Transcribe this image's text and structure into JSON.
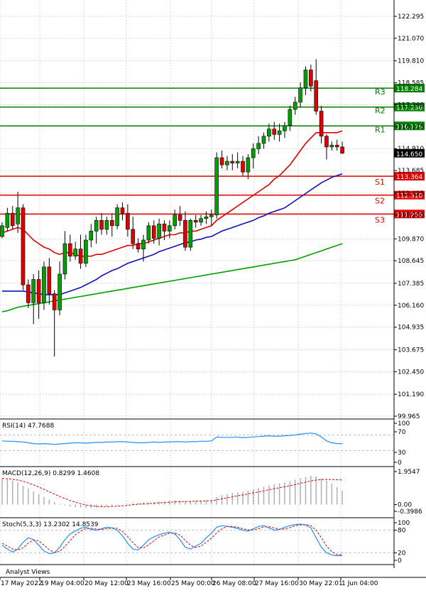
{
  "chart_data": [
    {
      "type": "candlestick",
      "panel": "price",
      "y_ticks": [
        "122.295",
        "121.070",
        "119.810",
        "118.585",
        "117.360",
        "116.135",
        "114.910",
        "113.685",
        "112.425",
        "111.200",
        "109.870",
        "108.645",
        "107.385",
        "106.160",
        "104.935",
        "103.675",
        "102.450",
        "101.190",
        "99.965"
      ],
      "ylim": [
        99.965,
        122.295
      ],
      "x_tick_labels": [
        "17 May 2022",
        "19 May 04:00",
        "20 May 12:00",
        "23 May 16:00",
        "25 May 00:00",
        "26 May 08:00",
        "27 May 16:00",
        "30 May 22:01",
        "1 Jun 04:00"
      ],
      "candles": [
        {
          "o": 110.0,
          "h": 110.8,
          "l": 109.9,
          "c": 110.6
        },
        {
          "o": 110.5,
          "h": 111.6,
          "l": 110.3,
          "c": 111.3
        },
        {
          "o": 111.3,
          "h": 111.7,
          "l": 110.4,
          "c": 110.6
        },
        {
          "o": 110.7,
          "h": 112.5,
          "l": 110.2,
          "c": 111.6
        },
        {
          "o": 111.6,
          "h": 111.8,
          "l": 107.0,
          "c": 107.3
        },
        {
          "o": 107.3,
          "h": 107.6,
          "l": 106.0,
          "c": 106.3
        },
        {
          "o": 106.3,
          "h": 107.9,
          "l": 105.1,
          "c": 107.6
        },
        {
          "o": 107.6,
          "h": 108.1,
          "l": 105.4,
          "c": 106.3
        },
        {
          "o": 106.3,
          "h": 108.6,
          "l": 105.9,
          "c": 108.3
        },
        {
          "o": 108.3,
          "h": 108.8,
          "l": 106.2,
          "c": 106.8
        },
        {
          "o": 106.8,
          "h": 107.0,
          "l": 103.3,
          "c": 105.9
        },
        {
          "o": 105.9,
          "h": 108.6,
          "l": 105.6,
          "c": 107.9
        },
        {
          "o": 107.9,
          "h": 110.3,
          "l": 107.6,
          "c": 109.6
        },
        {
          "o": 109.6,
          "h": 110.1,
          "l": 108.6,
          "c": 108.9
        },
        {
          "o": 108.9,
          "h": 109.7,
          "l": 108.7,
          "c": 109.3
        },
        {
          "o": 109.3,
          "h": 110.1,
          "l": 108.2,
          "c": 108.5
        },
        {
          "o": 108.5,
          "h": 110.1,
          "l": 108.3,
          "c": 109.8
        },
        {
          "o": 109.8,
          "h": 110.7,
          "l": 109.4,
          "c": 110.3
        },
        {
          "o": 110.3,
          "h": 111.1,
          "l": 109.6,
          "c": 110.9
        },
        {
          "o": 110.9,
          "h": 111.3,
          "l": 110.1,
          "c": 110.4
        },
        {
          "o": 110.4,
          "h": 111.1,
          "l": 110.1,
          "c": 110.9
        },
        {
          "o": 110.9,
          "h": 111.3,
          "l": 110.0,
          "c": 110.6
        },
        {
          "o": 110.6,
          "h": 111.8,
          "l": 110.4,
          "c": 111.6
        },
        {
          "o": 111.6,
          "h": 111.9,
          "l": 110.9,
          "c": 111.3
        },
        {
          "o": 111.3,
          "h": 111.8,
          "l": 110.0,
          "c": 110.4
        },
        {
          "o": 110.4,
          "h": 111.1,
          "l": 109.3,
          "c": 109.6
        },
        {
          "o": 109.6,
          "h": 109.9,
          "l": 109.1,
          "c": 109.3
        },
        {
          "o": 109.3,
          "h": 110.1,
          "l": 108.6,
          "c": 109.8
        },
        {
          "o": 109.8,
          "h": 110.8,
          "l": 109.6,
          "c": 110.6
        },
        {
          "o": 110.6,
          "h": 110.9,
          "l": 109.6,
          "c": 109.9
        },
        {
          "o": 109.9,
          "h": 111.0,
          "l": 109.5,
          "c": 110.7
        },
        {
          "o": 110.7,
          "h": 110.9,
          "l": 109.8,
          "c": 110.3
        },
        {
          "o": 110.3,
          "h": 110.9,
          "l": 109.9,
          "c": 110.6
        },
        {
          "o": 110.6,
          "h": 111.5,
          "l": 110.4,
          "c": 111.2
        },
        {
          "o": 111.2,
          "h": 111.7,
          "l": 110.6,
          "c": 110.9
        },
        {
          "o": 110.9,
          "h": 111.4,
          "l": 109.2,
          "c": 109.4
        },
        {
          "o": 109.4,
          "h": 111.0,
          "l": 109.2,
          "c": 110.9
        },
        {
          "o": 110.9,
          "h": 111.2,
          "l": 110.5,
          "c": 110.8
        },
        {
          "o": 110.8,
          "h": 111.2,
          "l": 110.6,
          "c": 111.0
        },
        {
          "o": 111.0,
          "h": 111.4,
          "l": 110.7,
          "c": 111.1
        },
        {
          "o": 111.1,
          "h": 111.5,
          "l": 110.6,
          "c": 111.2
        },
        {
          "o": 111.2,
          "h": 114.7,
          "l": 111.0,
          "c": 114.4
        },
        {
          "o": 114.4,
          "h": 114.8,
          "l": 113.8,
          "c": 114.0
        },
        {
          "o": 114.0,
          "h": 114.5,
          "l": 113.7,
          "c": 114.2
        },
        {
          "o": 114.2,
          "h": 114.6,
          "l": 113.7,
          "c": 114.1
        },
        {
          "o": 114.1,
          "h": 114.7,
          "l": 113.8,
          "c": 114.2
        },
        {
          "o": 114.2,
          "h": 114.5,
          "l": 113.4,
          "c": 113.6
        },
        {
          "o": 113.6,
          "h": 114.6,
          "l": 113.2,
          "c": 114.4
        },
        {
          "o": 114.4,
          "h": 115.2,
          "l": 113.8,
          "c": 114.9
        },
        {
          "o": 114.9,
          "h": 115.6,
          "l": 114.6,
          "c": 115.2
        },
        {
          "o": 115.2,
          "h": 115.8,
          "l": 114.9,
          "c": 115.6
        },
        {
          "o": 115.6,
          "h": 116.3,
          "l": 115.3,
          "c": 116.0
        },
        {
          "o": 116.0,
          "h": 116.4,
          "l": 115.4,
          "c": 115.7
        },
        {
          "o": 115.7,
          "h": 116.3,
          "l": 115.3,
          "c": 115.9
        },
        {
          "o": 115.9,
          "h": 116.4,
          "l": 115.5,
          "c": 116.2
        },
        {
          "o": 116.2,
          "h": 117.3,
          "l": 115.9,
          "c": 117.1
        },
        {
          "o": 117.1,
          "h": 117.8,
          "l": 116.8,
          "c": 117.5
        },
        {
          "o": 117.5,
          "h": 118.6,
          "l": 117.2,
          "c": 118.3
        },
        {
          "o": 118.3,
          "h": 119.5,
          "l": 117.9,
          "c": 119.3
        },
        {
          "o": 119.3,
          "h": 119.6,
          "l": 118.1,
          "c": 118.4
        },
        {
          "o": 118.7,
          "h": 119.9,
          "l": 116.8,
          "c": 117.0
        },
        {
          "o": 117.0,
          "h": 117.3,
          "l": 115.2,
          "c": 115.6
        },
        {
          "o": 115.6,
          "h": 115.7,
          "l": 114.3,
          "c": 115.0
        },
        {
          "o": 115.0,
          "h": 115.3,
          "l": 114.8,
          "c": 115.1
        },
        {
          "o": 115.1,
          "h": 115.4,
          "l": 114.8,
          "c": 115.0
        },
        {
          "o": 115.0,
          "h": 115.3,
          "l": 114.6,
          "c": 114.65
        }
      ],
      "moving_averages": [
        {
          "color": "#e00000",
          "values": [
            110.2,
            110.3,
            110.4,
            110.5,
            110.4,
            110.1,
            109.8,
            109.6,
            109.4,
            109.3,
            109.1,
            109.0,
            109.1,
            109.1,
            109.0,
            108.9,
            108.9,
            108.9,
            109.0,
            109.0,
            109.1,
            109.2,
            109.3,
            109.4,
            109.5,
            109.5,
            109.6,
            109.6,
            109.7,
            109.8,
            109.9,
            110.0,
            110.1,
            110.1,
            110.2,
            110.2,
            110.3,
            110.3,
            110.4,
            110.5,
            110.6,
            110.9,
            111.1,
            111.3,
            111.5,
            111.7,
            111.9,
            112.1,
            112.3,
            112.5,
            112.7,
            112.9,
            113.2,
            113.4,
            113.7,
            114.0,
            114.4,
            114.8,
            115.2,
            115.5,
            115.8,
            115.8,
            115.8,
            115.8,
            115.8,
            115.9
          ]
        },
        {
          "color": "#1010c0",
          "values": [
            106.95,
            106.95,
            106.95,
            106.95,
            106.95,
            106.9,
            106.85,
            106.8,
            106.75,
            106.75,
            106.75,
            106.75,
            106.85,
            106.95,
            107.05,
            107.15,
            107.3,
            107.45,
            107.6,
            107.8,
            107.95,
            108.1,
            108.2,
            108.35,
            108.5,
            108.6,
            108.7,
            108.8,
            108.9,
            109.0,
            109.15,
            109.25,
            109.35,
            109.45,
            109.55,
            109.65,
            109.7,
            109.8,
            109.85,
            109.95,
            110.0,
            110.15,
            110.3,
            110.4,
            110.5,
            110.6,
            110.7,
            110.8,
            110.9,
            111.05,
            111.15,
            111.3,
            111.4,
            111.5,
            111.6,
            111.8,
            112.0,
            112.2,
            112.4,
            112.6,
            112.8,
            113.0,
            113.15,
            113.3,
            113.4,
            113.5
          ]
        },
        {
          "color": "#00a000",
          "values": [
            105.8,
            105.85,
            105.95,
            106.05,
            106.1,
            106.15,
            106.2,
            106.25,
            106.3,
            106.35,
            106.4,
            106.45,
            106.5,
            106.55,
            106.6,
            106.65,
            106.7,
            106.75,
            106.8,
            106.85,
            106.9,
            106.95,
            107.0,
            107.05,
            107.1,
            107.15,
            107.2,
            107.25,
            107.3,
            107.35,
            107.4,
            107.45,
            107.5,
            107.55,
            107.6,
            107.65,
            107.7,
            107.75,
            107.8,
            107.85,
            107.9,
            107.95,
            108.0,
            108.05,
            108.1,
            108.15,
            108.2,
            108.25,
            108.3,
            108.35,
            108.4,
            108.45,
            108.5,
            108.55,
            108.6,
            108.65,
            108.7,
            108.8,
            108.9,
            109.0,
            109.1,
            109.2,
            109.3,
            109.4,
            109.5,
            109.6
          ]
        }
      ],
      "levels": [
        {
          "label": "R3",
          "value": 118.284,
          "value_label": "118.284",
          "color": "#008000"
        },
        {
          "label": "R2",
          "value": 117.23,
          "value_label": "117.230",
          "color": "#008000"
        },
        {
          "label": "R1",
          "value": 116.176,
          "value_label": "116.176",
          "color": "#008000"
        },
        {
          "label": "S1",
          "value": 113.364,
          "value_label": "113.364",
          "color": "#e00000"
        },
        {
          "label": "S2",
          "value": 112.31,
          "value_label": "112.310",
          "color": "#e00000"
        },
        {
          "label": "S3",
          "value": 111.256,
          "value_label": "111.256",
          "color": "#e00000"
        }
      ],
      "current_price": {
        "value": 114.65,
        "label": "114.650"
      },
      "watermark": "Analyst Views"
    },
    {
      "type": "line",
      "panel": "rsi",
      "title": "RSI(14) 47.7688",
      "y_ticks": [
        "100",
        "70",
        "30",
        "0"
      ],
      "ylim": [
        0,
        100
      ],
      "values": [
        55,
        54,
        54,
        53,
        52,
        50,
        48,
        47,
        48,
        47,
        46,
        47,
        48,
        49,
        50,
        50,
        49,
        50,
        51,
        51,
        52,
        52,
        53,
        53,
        52,
        51,
        50,
        50,
        51,
        52,
        51,
        52,
        52,
        53,
        53,
        52,
        53,
        53,
        54,
        54,
        55,
        65,
        64,
        64,
        64,
        65,
        63,
        64,
        65,
        66,
        67,
        68,
        67,
        67,
        68,
        69,
        70,
        72,
        74,
        75,
        73,
        65,
        55,
        50,
        48,
        48
      ]
    },
    {
      "type": "line",
      "panel": "macd",
      "title": "MACD(12,26,9) 0.8299 1.4608",
      "y_ticks": [
        "1.9547",
        "0.00",
        "-0.3986"
      ],
      "ylim": [
        -0.3986,
        1.9547
      ],
      "histogram": [
        1.55,
        1.5,
        1.42,
        1.3,
        1.12,
        0.95,
        0.78,
        0.6,
        0.45,
        0.3,
        0.15,
        0.05,
        -0.05,
        -0.1,
        -0.15,
        -0.18,
        -0.2,
        -0.2,
        -0.18,
        -0.15,
        -0.12,
        -0.08,
        -0.04,
        0.0,
        0.04,
        0.08,
        0.1,
        0.12,
        0.14,
        0.16,
        0.18,
        0.2,
        0.22,
        0.23,
        0.24,
        0.22,
        0.2,
        0.22,
        0.24,
        0.26,
        0.28,
        0.45,
        0.55,
        0.62,
        0.68,
        0.72,
        0.76,
        0.82,
        0.9,
        0.98,
        1.06,
        1.14,
        1.2,
        1.26,
        1.32,
        1.4,
        1.48,
        1.56,
        1.64,
        1.7,
        1.68,
        1.55,
        1.4,
        1.25,
        1.05,
        0.83
      ],
      "signal": [
        1.55,
        1.53,
        1.5,
        1.45,
        1.38,
        1.28,
        1.17,
        1.04,
        0.9,
        0.76,
        0.62,
        0.48,
        0.36,
        0.24,
        0.14,
        0.05,
        -0.02,
        -0.07,
        -0.1,
        -0.12,
        -0.12,
        -0.11,
        -0.09,
        -0.07,
        -0.04,
        -0.01,
        0.02,
        0.04,
        0.06,
        0.08,
        0.1,
        0.12,
        0.14,
        0.16,
        0.18,
        0.18,
        0.19,
        0.2,
        0.21,
        0.22,
        0.23,
        0.28,
        0.34,
        0.4,
        0.46,
        0.52,
        0.57,
        0.63,
        0.69,
        0.75,
        0.81,
        0.88,
        0.94,
        1.0,
        1.06,
        1.12,
        1.19,
        1.26,
        1.33,
        1.4,
        1.45,
        1.48,
        1.49,
        1.48,
        1.47,
        1.46
      ]
    },
    {
      "type": "line",
      "panel": "stochastic",
      "title": "Stoch(5,3,3) 13.2302 14.8539",
      "y_ticks": [
        "100",
        "80",
        "20",
        "0"
      ],
      "ylim": [
        0,
        100
      ],
      "k": [
        40,
        30,
        22,
        30,
        48,
        60,
        55,
        40,
        25,
        18,
        20,
        35,
        55,
        70,
        78,
        85,
        88,
        82,
        80,
        84,
        88,
        86,
        80,
        65,
        45,
        30,
        28,
        40,
        55,
        62,
        68,
        72,
        75,
        70,
        55,
        35,
        30,
        38,
        45,
        60,
        72,
        88,
        92,
        90,
        88,
        85,
        80,
        78,
        84,
        90,
        92,
        86,
        80,
        82,
        88,
        92,
        95,
        96,
        94,
        86,
        60,
        35,
        20,
        14,
        12,
        13
      ],
      "d": [
        45,
        38,
        30,
        27,
        33,
        46,
        54,
        52,
        40,
        28,
        21,
        24,
        37,
        53,
        68,
        78,
        84,
        85,
        83,
        82,
        84,
        86,
        85,
        77,
        63,
        47,
        34,
        33,
        41,
        52,
        62,
        67,
        72,
        72,
        67,
        53,
        40,
        34,
        38,
        48,
        59,
        73,
        84,
        90,
        90,
        88,
        84,
        81,
        81,
        84,
        89,
        89,
        86,
        83,
        83,
        87,
        92,
        94,
        95,
        92,
        80,
        60,
        38,
        23,
        15,
        15
      ]
    }
  ]
}
